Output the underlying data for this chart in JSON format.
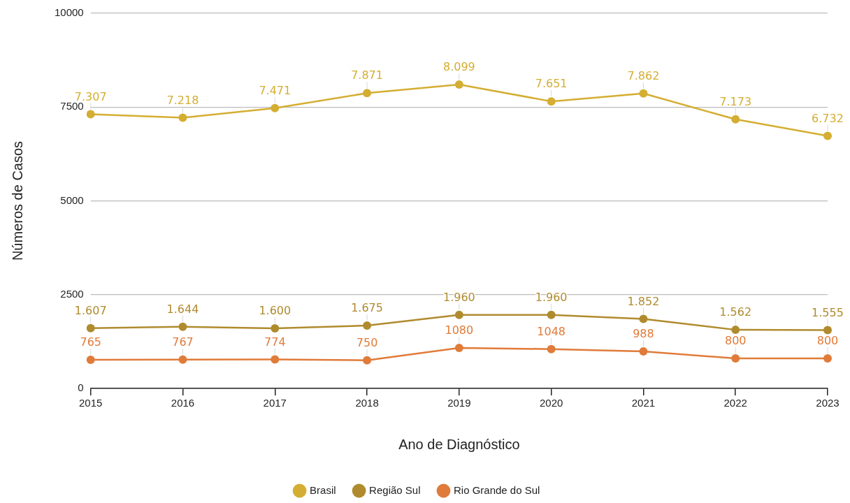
{
  "chart_data": {
    "type": "line",
    "xlabel": "Ano de Diagnóstico",
    "ylabel": "Números de Casos",
    "categories": [
      "2015",
      "2016",
      "2017",
      "2018",
      "2019",
      "2020",
      "2021",
      "2022",
      "2023"
    ],
    "ylim": [
      0,
      10000
    ],
    "yticks": [
      0,
      2500,
      5000,
      7500,
      10000
    ],
    "grid": "y",
    "legend": "bottom",
    "marker": "circle",
    "line_style": "solid",
    "series": [
      {
        "name": "Brasil",
        "color": "#d4ae32",
        "values": [
          7307,
          7218,
          7471,
          7871,
          8099,
          7651,
          7862,
          7173,
          6732
        ],
        "value_labels": [
          "7.307",
          "7.218",
          "7.471",
          "7.871",
          "8.099",
          "7.651",
          "7.862",
          "7.173",
          "6.732"
        ]
      },
      {
        "name": "Região Sul",
        "color": "#b08b2e",
        "values": [
          1607,
          1644,
          1600,
          1675,
          1960,
          1960,
          1852,
          1562,
          1555
        ],
        "value_labels": [
          "1.607",
          "1.644",
          "1.600",
          "1.675",
          "1.960",
          "1.960",
          "1.852",
          "1.562",
          "1.555"
        ]
      },
      {
        "name": "Rio Grande do Sul",
        "color": "#e07b39",
        "values": [
          765,
          767,
          774,
          750,
          1080,
          1048,
          988,
          800,
          800
        ],
        "value_labels": [
          "765",
          "767",
          "774",
          "750",
          "1080",
          "1048",
          "988",
          "800",
          "800"
        ]
      }
    ]
  }
}
